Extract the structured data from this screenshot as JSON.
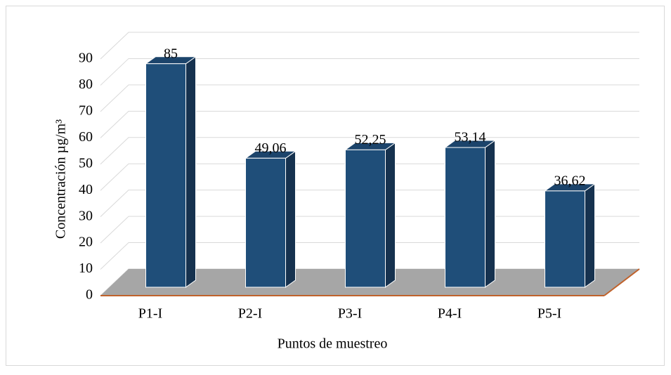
{
  "chart_data": {
    "type": "bar3d",
    "categories": [
      "P1-I",
      "P2-I",
      "P3-I",
      "P4-I",
      "P5-I"
    ],
    "values": [
      85,
      49.06,
      52.25,
      53.14,
      36.62
    ],
    "value_labels": [
      "85",
      "49,06",
      "52,25",
      "53,14",
      "36,62"
    ],
    "color": "#1f4e79",
    "x_label": "Puntos de muestreo",
    "y_label": "Concentración µg/m³",
    "ylim": [
      0,
      90
    ],
    "yticks": [
      0,
      10,
      20,
      30,
      40,
      50,
      60,
      70,
      80,
      90
    ],
    "grid": true
  }
}
